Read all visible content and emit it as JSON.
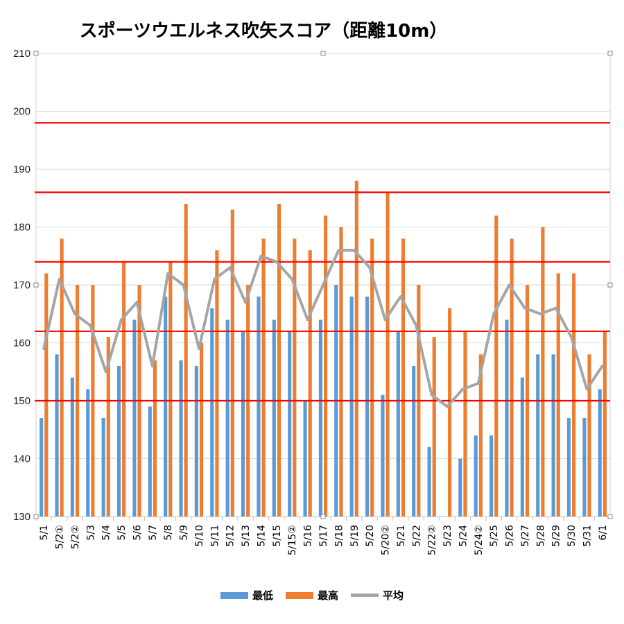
{
  "title": "スポーツウエルネス吹矢スコア（距離10m）",
  "chart_data": {
    "type": "bar",
    "title": "スポーツウエルネス吹矢スコア（距離10m）",
    "categories": [
      "5/1",
      "5/2①",
      "5/2②",
      "5/3",
      "5/4",
      "5/5",
      "5/6",
      "5/7",
      "5/8",
      "5/9",
      "5/10",
      "5/11",
      "5/12",
      "5/13",
      "5/14",
      "5/15",
      "5/15②",
      "5/16",
      "5/17",
      "5/18",
      "5/19",
      "5/20",
      "5/20②",
      "5/21",
      "5/22",
      "5/22②",
      "5/23",
      "5/24",
      "5/24②",
      "5/25",
      "5/26",
      "5/27",
      "5/28",
      "5/29",
      "5/30",
      "5/31",
      "6/1"
    ],
    "series": [
      {
        "name": "最低",
        "type": "bar",
        "color": "#5b9bd5",
        "values": [
          147,
          158,
          154,
          152,
          147,
          156,
          164,
          149,
          168,
          157,
          156,
          166,
          164,
          162,
          168,
          164,
          162,
          150,
          164,
          170,
          168,
          168,
          151,
          162,
          156,
          142,
          null,
          140,
          144,
          144,
          164,
          154,
          158,
          158,
          147,
          147,
          152
        ]
      },
      {
        "name": "最高",
        "type": "bar",
        "color": "#ed7d31",
        "values": [
          172,
          178,
          170,
          170,
          161,
          174,
          170,
          157,
          174,
          184,
          160,
          176,
          183,
          170,
          178,
          184,
          178,
          176,
          182,
          180,
          188,
          178,
          186,
          178,
          170,
          161,
          166,
          162,
          158,
          182,
          178,
          170,
          180,
          172,
          172,
          158,
          162
        ]
      },
      {
        "name": "平均",
        "type": "line",
        "color": "#a5a5a5",
        "values": [
          159,
          171,
          165,
          163,
          155,
          164,
          167,
          156,
          172,
          170,
          159,
          171,
          173,
          167,
          175,
          174,
          171,
          164,
          170,
          176,
          176,
          173,
          164,
          168,
          163,
          151,
          149,
          152,
          153,
          165,
          170,
          166,
          165,
          166,
          161,
          152,
          156
        ]
      }
    ],
    "ylim": [
      130,
      210
    ],
    "yticks": [
      130,
      140,
      150,
      160,
      170,
      180,
      190,
      200,
      210
    ],
    "reference_lines": [
      150,
      162,
      174,
      186,
      198
    ],
    "reference_line_color": "#ff0000",
    "grid": true,
    "legend_position": "bottom"
  },
  "legend": [
    {
      "label": "最低",
      "color": "#5b9bd5",
      "kind": "bar"
    },
    {
      "label": "最高",
      "color": "#ed7d31",
      "kind": "bar"
    },
    {
      "label": "平均",
      "color": "#a5a5a5",
      "kind": "line"
    }
  ]
}
